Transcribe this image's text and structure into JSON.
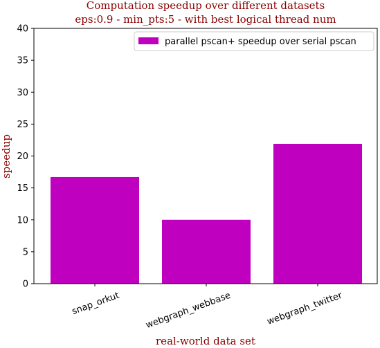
{
  "colors": {
    "bar": "#bf00bf",
    "title": "#8b0000",
    "axis": "#000000"
  },
  "chart_data": {
    "type": "bar",
    "title": "Computation speedup over different datasets",
    "subtitle": "eps:0.9 - min_pts:5 - with best logical thread num",
    "xlabel": "real-world data set",
    "ylabel": "speedup",
    "categories": [
      "snap_orkut",
      "webgraph_webbase",
      "webgraph_twitter"
    ],
    "series": [
      {
        "name": "parallel pscan+ speedup over serial pscan",
        "values": [
          16.7,
          10.0,
          21.9
        ]
      }
    ],
    "ylim": [
      0,
      40
    ],
    "yticks": [
      0,
      5,
      10,
      15,
      20,
      25,
      30,
      35,
      40
    ],
    "grid": false,
    "legend_position": "top-right"
  }
}
